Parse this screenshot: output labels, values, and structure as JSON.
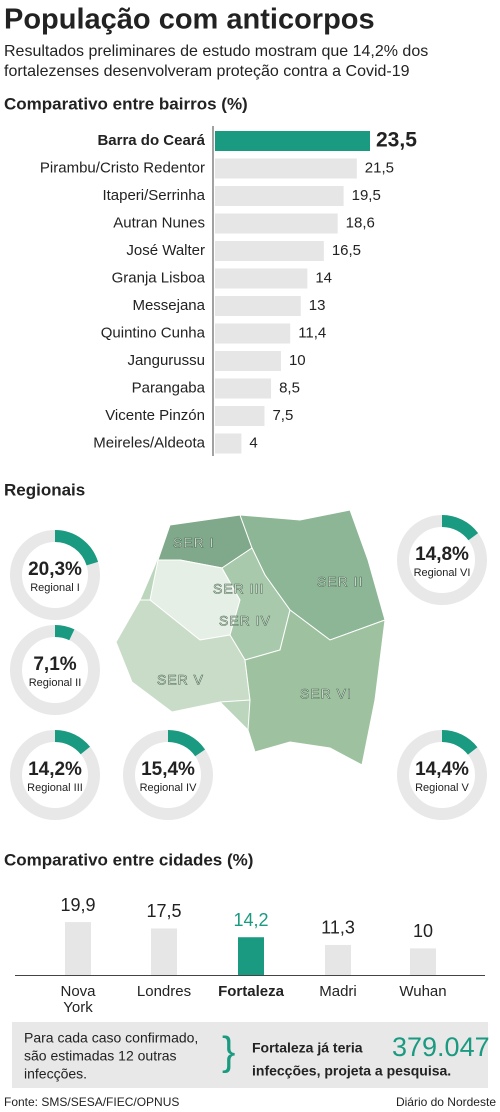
{
  "title": "População com anticorpos",
  "subtitle": [
    "Resultados preliminares de estudo mostram que 14,2% dos",
    "fortalezenses desenvolveram proteção contra a Covid-19"
  ],
  "chart_data": [
    {
      "type": "hbar",
      "title": "Comparativo entre bairros (%)",
      "categories": [
        "Barra do Ceará",
        "Pirambu/Cristo Redentor",
        "Itaperi/Serrinha",
        "Autran Nunes",
        "José Walter",
        "Granja Lisboa",
        "Messejana",
        "Quintino Cunha",
        "Jangurussu",
        "Parangaba",
        "Vicente Pinzón",
        "Meireles/Aldeota"
      ],
      "values": [
        23.5,
        21.5,
        19.5,
        18.6,
        16.5,
        14,
        13,
        11.4,
        10,
        8.5,
        7.5,
        4
      ],
      "value_labels": [
        "23,5",
        "21,5",
        "19,5",
        "18,6",
        "16,5",
        "14",
        "13",
        "11,4",
        "10",
        "8,5",
        "7,5",
        "4"
      ],
      "color": "#e6e6e6",
      "highlight_color": "#1a9a80"
    },
    {
      "type": "donut",
      "title": "Regionais",
      "categories": [
        "Regional I",
        "Regional II",
        "Regional III",
        "Regional IV",
        "Regional VI",
        "Regional V"
      ],
      "values": [
        20.3,
        7.1,
        14.2,
        15.4,
        14.8,
        14.4
      ],
      "value_labels": [
        "20,3%",
        "7,1%",
        "14,2%",
        "15,4%",
        "14,8%",
        "14,4%"
      ],
      "color": "#1a9a80",
      "track_color": "#e8e8e8"
    },
    {
      "type": "bar",
      "title": "Comparativo entre cidades (%)",
      "categories": [
        "Nova York",
        "Londres",
        "Fortaleza",
        "Madri",
        "Wuhan"
      ],
      "values": [
        19.9,
        17.5,
        14.2,
        11.3,
        10
      ],
      "value_labels": [
        "19,9",
        "17,5",
        "14,2",
        "11,3",
        "10"
      ],
      "color": "#e6e6e6",
      "highlight_color": "#1a9a80"
    }
  ],
  "map": {
    "labels": [
      "SER I",
      "SER II",
      "SER III",
      "SER IV",
      "SER V",
      "SER VI"
    ]
  },
  "callout": {
    "left": [
      "Para cada caso confirmado,",
      "são estimadas 12 outras",
      "infecções."
    ],
    "brace": "}",
    "right": [
      "Fortaleza já teria",
      "infecções, projeta a pesquisa."
    ],
    "number": "379.047"
  },
  "footer": {
    "source": "Fonte: SMS/SESA/FIEC/OPNUS",
    "credit": "Diário do Nordeste"
  }
}
